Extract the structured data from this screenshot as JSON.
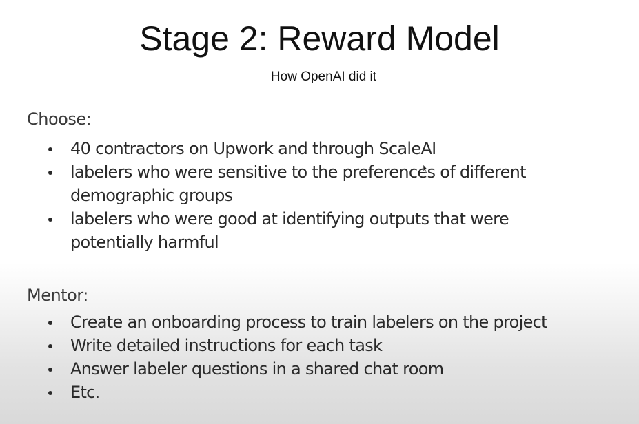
{
  "slide": {
    "title": "Stage 2: Reward Model",
    "subtitle": "How OpenAI did it",
    "sections": {
      "choose": {
        "heading": "Choose:",
        "bullets": [
          {
            "lines": [
              "40 contractors on Upwork and through ScaleAI"
            ]
          },
          {
            "lines": [
              "labelers who were sensitive to the preferences of different",
              "demographic groups"
            ]
          },
          {
            "lines": [
              "labelers who were good at identifying outputs that were",
              "potentially harmful"
            ]
          }
        ]
      },
      "mentor": {
        "heading": "Mentor:",
        "bullets": [
          {
            "lines": [
              "Create an onboarding process to train labelers on the project"
            ]
          },
          {
            "lines": [
              "Write detailed instructions for each task"
            ]
          },
          {
            "lines": [
              "Answer labeler questions in a shared chat room"
            ]
          },
          {
            "lines": [
              "Etc."
            ]
          }
        ]
      }
    }
  },
  "colors": {
    "title_text": "#111111",
    "body_text": "#2a2a2a",
    "heading_text": "#3a3a3a",
    "background_top": "#ffffff",
    "background_bottom": "#d9d9d9"
  },
  "icons": {
    "cursor": "mouse-pointer-icon"
  }
}
